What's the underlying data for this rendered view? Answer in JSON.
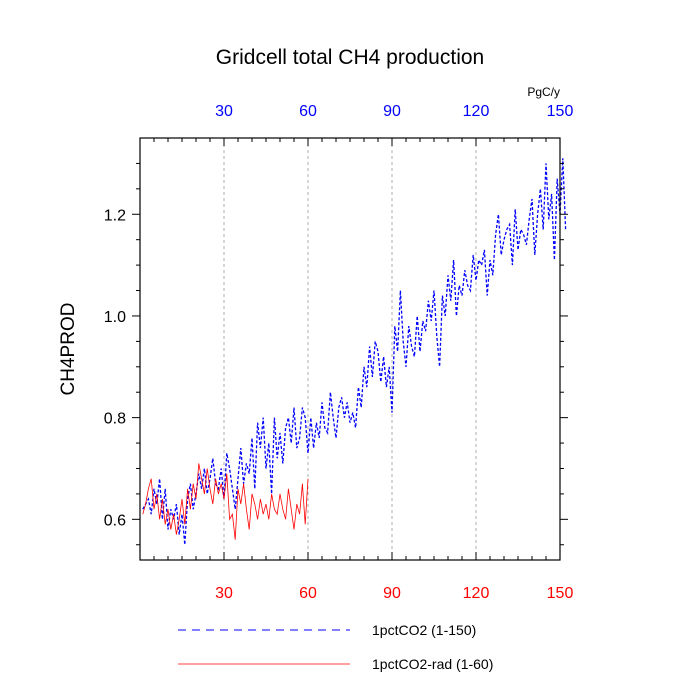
{
  "chart_data": {
    "type": "line",
    "title": "Gridcell total CH4 production",
    "ylabel": "CH4PROD",
    "xlabel": "",
    "top_axis_unit": "PgC/y",
    "xlim": [
      0,
      150
    ],
    "ylim": [
      0.52,
      1.35
    ],
    "xticks": [
      30,
      60,
      90,
      120,
      150
    ],
    "yticks": [
      0.6,
      0.8,
      1.0,
      1.2
    ],
    "ytick_labels": [
      "0.6",
      "0.8",
      "1.0",
      "1.2"
    ],
    "grid": "vertical dashed at x ticks",
    "legend_position": "bottom",
    "bottom_tick_color": "#ff0000",
    "top_tick_color": "#0000ff",
    "series": [
      {
        "name": "1pctCO2 (1-150)",
        "color": "#0000ff",
        "style": "dashed",
        "x_start": 1,
        "values": [
          0.62,
          0.63,
          0.64,
          0.61,
          0.66,
          0.63,
          0.68,
          0.6,
          0.66,
          0.58,
          0.62,
          0.6,
          0.63,
          0.57,
          0.61,
          0.55,
          0.64,
          0.67,
          0.62,
          0.65,
          0.69,
          0.66,
          0.7,
          0.65,
          0.68,
          0.72,
          0.67,
          0.66,
          0.7,
          0.64,
          0.73,
          0.7,
          0.66,
          0.62,
          0.68,
          0.74,
          0.67,
          0.71,
          0.69,
          0.76,
          0.66,
          0.79,
          0.74,
          0.8,
          0.7,
          0.75,
          0.65,
          0.8,
          0.72,
          0.77,
          0.71,
          0.78,
          0.8,
          0.75,
          0.82,
          0.74,
          0.76,
          0.82,
          0.8,
          0.73,
          0.8,
          0.74,
          0.79,
          0.76,
          0.83,
          0.78,
          0.77,
          0.85,
          0.8,
          0.76,
          0.82,
          0.84,
          0.8,
          0.83,
          0.79,
          0.81,
          0.78,
          0.86,
          0.82,
          0.9,
          0.86,
          0.94,
          0.88,
          0.95,
          0.93,
          0.87,
          0.92,
          0.86,
          0.9,
          0.81,
          0.98,
          0.93,
          1.05,
          0.95,
          0.9,
          0.98,
          0.94,
          0.92,
          1.0,
          0.93,
          0.99,
          0.97,
          1.03,
          0.99,
          1.05,
          0.96,
          0.9,
          1.04,
          1.0,
          1.08,
          1.03,
          1.11,
          1.0,
          1.06,
          1.04,
          1.09,
          1.06,
          1.05,
          1.12,
          1.07,
          1.11,
          1.1,
          1.13,
          1.04,
          1.11,
          1.08,
          1.16,
          1.2,
          1.12,
          1.15,
          1.17,
          1.18,
          1.1,
          1.21,
          1.13,
          1.17,
          1.16,
          1.14,
          1.19,
          1.23,
          1.12,
          1.2,
          1.25,
          1.17,
          1.3,
          1.19,
          1.24,
          1.11,
          1.27,
          1.2,
          1.31,
          1.17
        ]
      },
      {
        "name": "1pctCO2-rad (1-60)",
        "color": "#ff0000",
        "style": "solid",
        "x_start": 1,
        "values": [
          0.61,
          0.63,
          0.66,
          0.68,
          0.62,
          0.65,
          0.6,
          0.64,
          0.59,
          0.62,
          0.58,
          0.61,
          0.57,
          0.6,
          0.64,
          0.59,
          0.66,
          0.62,
          0.67,
          0.64,
          0.71,
          0.68,
          0.65,
          0.7,
          0.66,
          0.63,
          0.68,
          0.65,
          0.67,
          0.64,
          0.69,
          0.6,
          0.61,
          0.56,
          0.66,
          0.63,
          0.67,
          0.62,
          0.58,
          0.65,
          0.63,
          0.6,
          0.64,
          0.61,
          0.63,
          0.6,
          0.65,
          0.62,
          0.61,
          0.65,
          0.62,
          0.6,
          0.66,
          0.62,
          0.58,
          0.63,
          0.61,
          0.67,
          0.59,
          0.68
        ]
      }
    ]
  }
}
